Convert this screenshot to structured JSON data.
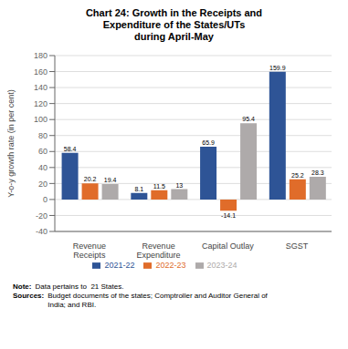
{
  "chart_data": {
    "type": "bar",
    "title": "Chart 24: Growth in the Receipts and\nExpenditure of the States/UTs\nduring April-May",
    "categories": [
      "Revenue\nReceipts",
      "Revenue\nExpenditure",
      "Capital Outlay",
      "SGST"
    ],
    "series": [
      {
        "name": "2021-22",
        "color": "#2E5496",
        "values": [
          58.4,
          8.1,
          65.9,
          159.9
        ]
      },
      {
        "name": "2022-23",
        "color": "#E06C2A",
        "values": [
          20.2,
          11.5,
          -14.1,
          25.2
        ]
      },
      {
        "name": "2023-24",
        "color": "#AEAAAA",
        "values": [
          19.4,
          13.0,
          95.4,
          28.3
        ]
      }
    ],
    "ylabel": "Y-o-y growth rate (in per cent)",
    "ylim": [
      -40,
      180
    ],
    "yticks": [
      -40,
      -20,
      0,
      20,
      40,
      60,
      80,
      100,
      120,
      140,
      160,
      180
    ],
    "grid": true,
    "legend": "bottom",
    "data_labels": true,
    "annotations": [
      "Note:",
      "Data pertains to  21 States.",
      "Sources:",
      "Budget documents of the states; Comptroller and Auditor General of\nIndia; and RBI."
    ]
  }
}
